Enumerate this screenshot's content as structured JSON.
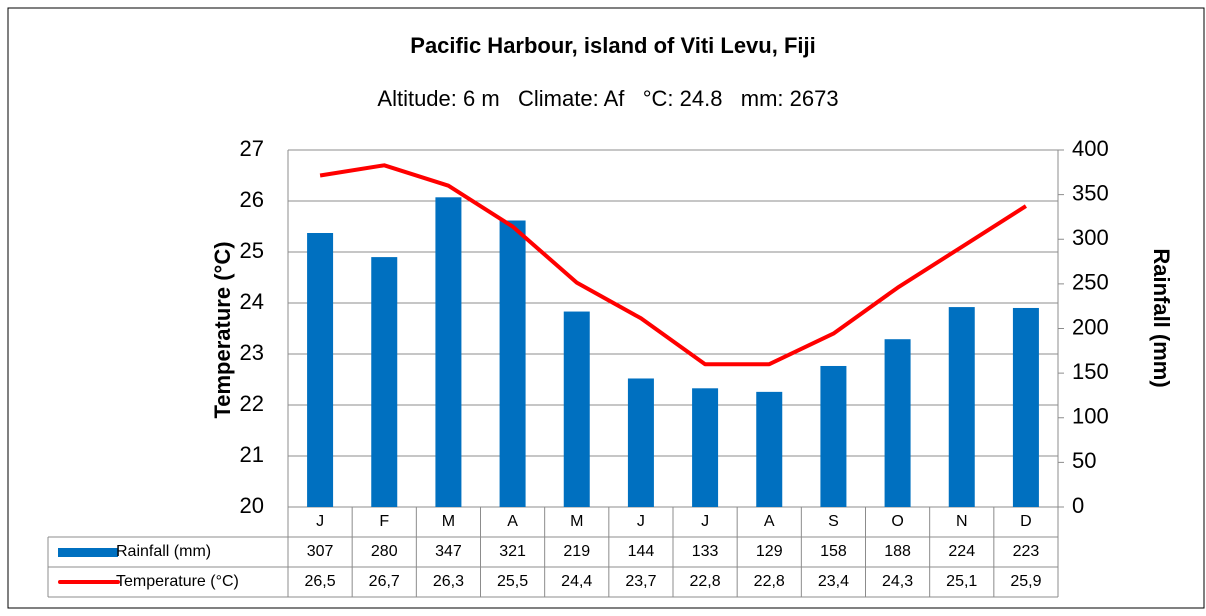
{
  "chart_data": {
    "type": "bar",
    "title": "Pacific Harbour, island of Viti Levu, Fiji",
    "subtitle": "Altitude: 6 m   Climate: Af   °C: 24.8   mm: 2673",
    "ylabel": "Temperature (°C)",
    "y2label": "Rainfall (mm)",
    "categories": [
      "J",
      "F",
      "M",
      "A",
      "M",
      "J",
      "J",
      "A",
      "S",
      "O",
      "N",
      "D"
    ],
    "series": [
      {
        "name": "Rainfall (mm)",
        "type": "bar",
        "axis": "y2",
        "color": "#0070c0",
        "values": [
          307,
          280,
          347,
          321,
          219,
          144,
          133,
          129,
          158,
          188,
          224,
          223
        ]
      },
      {
        "name": "Temperature (°C)",
        "type": "line",
        "color": "#ff0000",
        "values": [
          26.5,
          26.7,
          26.3,
          25.5,
          24.4,
          23.7,
          22.8,
          22.8,
          23.4,
          24.3,
          25.1,
          25.9
        ],
        "value_labels": [
          "26,5",
          "26,7",
          "26,3",
          "25,5",
          "24,4",
          "23,7",
          "22,8",
          "22,8",
          "23,4",
          "24,3",
          "25,1",
          "25,9"
        ]
      }
    ],
    "ylim": [
      20,
      27
    ],
    "yticks": [
      20,
      21,
      22,
      23,
      24,
      25,
      26,
      27
    ],
    "y2lim": [
      0,
      400
    ],
    "y2ticks": [
      0,
      50,
      100,
      150,
      200,
      250,
      300,
      350,
      400
    ],
    "grid": true
  }
}
